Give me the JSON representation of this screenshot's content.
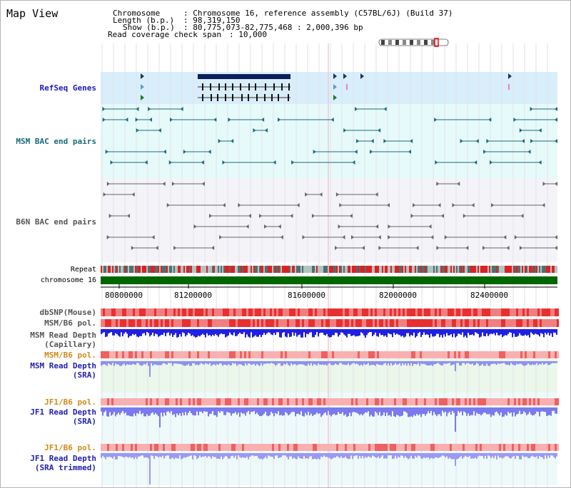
{
  "page": {
    "title": "Map View"
  },
  "info": {
    "chromosome_label": "Chromosome",
    "chromosome_value": ": Chromosome 16, reference assembly (C57BL/6J) (Build 37)",
    "length_label": "Length (b.p.)",
    "length_value": ": 98,319,150",
    "show_label": "Show (b.p.)",
    "show_value": ": 80,775,073-82,775,468 : 2,000,396 bp",
    "coverage_label": "Read coverage check span",
    "coverage_value": ": 10,000"
  },
  "tracks": {
    "refseq": "RefSeq Genes",
    "msm_bac": "MSM BAC end pairs",
    "b6n_bac": "B6N BAC end pairs",
    "repeat": "Repeat",
    "chromosome": "chromosome 16",
    "dbsnp": "dbSNP(Mouse)",
    "msm_b6_pol_1": "MSM/B6 pol.",
    "msm_depth_cap_1": "MSM Read Depth",
    "msm_depth_cap_2": "(Capillary)",
    "msm_b6_pol_2": "MSM/B6 pol.",
    "msm_depth_sra_1": "MSM Read Depth",
    "msm_depth_sra_2": "(SRA)",
    "jf1_b6_pol_1": "JF1/B6 pol.",
    "jf1_depth_sra_1": "JF1 Read Depth",
    "jf1_depth_sra_2": "(SRA)",
    "jf1_b6_pol_2": "JF1/B6 pol.",
    "jf1_depth_trim_1": "JF1 Read Depth",
    "jf1_depth_trim_2": "(SRA trimmed)"
  },
  "axis": {
    "ticks": [
      "80800000",
      "81200000",
      "81600000",
      "82000000",
      "82400000"
    ]
  },
  "colors": {
    "refseq_label": "#1c1cb4",
    "msm_label": "#1a6a7a",
    "b6n_label": "#555555",
    "pol_label": "#d08a1a",
    "depth_label": "#2222aa",
    "chromosome_bar": "#006600"
  }
}
